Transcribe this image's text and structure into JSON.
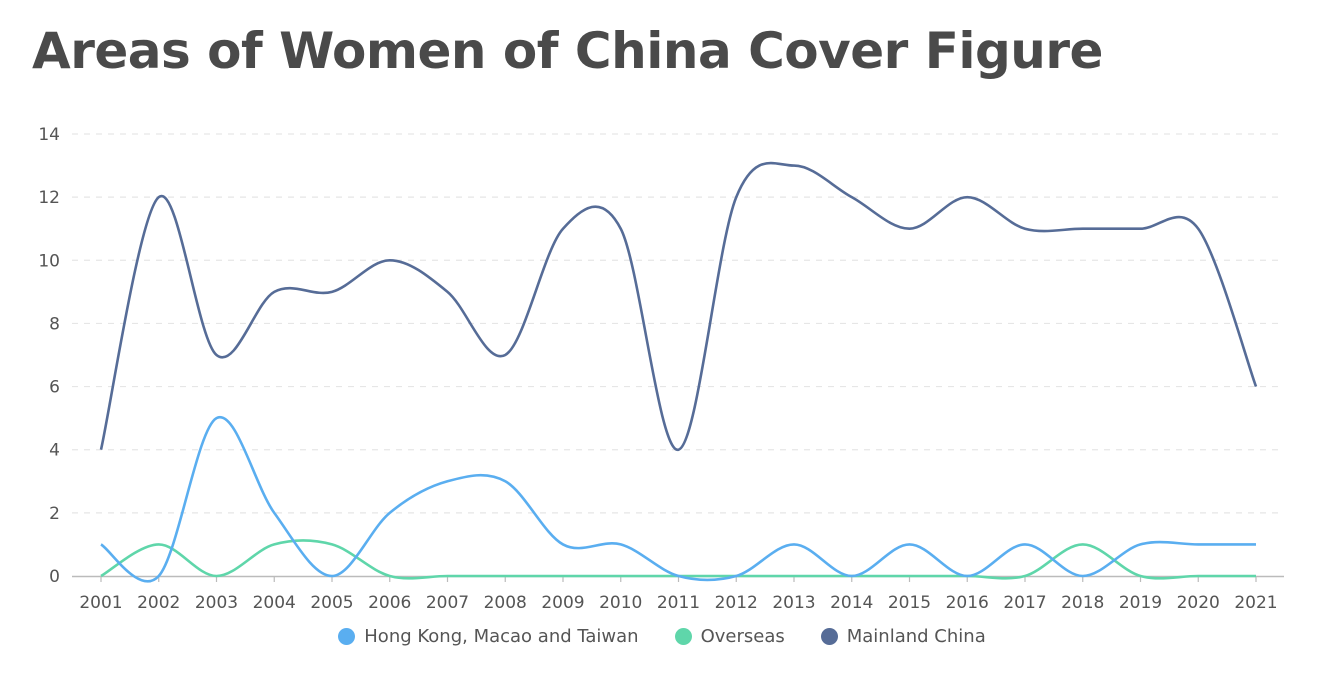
{
  "chart_data": {
    "type": "line",
    "title": "Areas of Women of China Cover Figure",
    "xlabel": "",
    "ylabel": "",
    "categories": [
      "2001",
      "2002",
      "2003",
      "2004",
      "2005",
      "2006",
      "2007",
      "2008",
      "2009",
      "2010",
      "2011",
      "2012",
      "2013",
      "2014",
      "2015",
      "2016",
      "2017",
      "2018",
      "2019",
      "2020",
      "2021"
    ],
    "ylim": [
      0,
      14
    ],
    "yticks": [
      0,
      2,
      4,
      6,
      8,
      10,
      12,
      14
    ],
    "grid": true,
    "legend_position": "bottom",
    "series": [
      {
        "name": "Hong Kong, Macao and Taiwan",
        "color": "#5aaef0",
        "values": [
          1,
          0,
          5,
          2,
          0,
          2,
          3,
          3,
          1,
          1,
          0,
          0,
          1,
          0,
          1,
          0,
          1,
          0,
          1,
          1,
          1
        ]
      },
      {
        "name": "Overseas",
        "color": "#5fd6aa",
        "values": [
          0,
          1,
          0,
          1,
          1,
          0,
          0,
          0,
          0,
          0,
          0,
          0,
          0,
          0,
          0,
          0,
          0,
          1,
          0,
          0,
          0
        ]
      },
      {
        "name": "Mainland China",
        "color": "#566c97",
        "values": [
          4,
          12,
          7,
          9,
          9,
          10,
          9,
          7,
          11,
          11,
          4,
          12,
          13,
          12,
          11,
          12,
          11,
          11,
          11,
          11,
          6
        ]
      }
    ]
  }
}
